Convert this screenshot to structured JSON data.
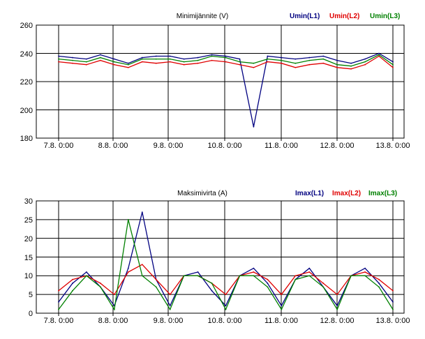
{
  "charts": [
    {
      "title": "Minimijännite (V)",
      "legend": [
        {
          "label": "Umin(L1)",
          "color": "#000080"
        },
        {
          "label": "Umin(L2)",
          "color": "#e00000"
        },
        {
          "label": "Umin(L3)",
          "color": "#008000"
        }
      ],
      "y_ticks": [
        "180",
        "200",
        "220",
        "240",
        "260"
      ],
      "x_ticks": [
        "7.8. 0:00",
        "8.8. 0:00",
        "9.8. 0:00",
        "10.8. 0:00",
        "11.8. 0:00",
        "12.8. 0:00",
        "13.8. 0:00"
      ]
    },
    {
      "title": "Maksimivirta (A)",
      "legend": [
        {
          "label": "Imax(L1)",
          "color": "#000080"
        },
        {
          "label": "Imax(L2)",
          "color": "#e00000"
        },
        {
          "label": "Imax(L3)",
          "color": "#008000"
        }
      ],
      "y_ticks": [
        "0",
        "5",
        "10",
        "15",
        "20",
        "25",
        "30"
      ],
      "x_ticks": [
        "7.8. 0:00",
        "8.8. 0:00",
        "9.8. 0:00",
        "10.8. 0:00",
        "11.8. 0:00",
        "12.8. 0:00",
        "13.8. 0:00"
      ]
    }
  ],
  "chart_data": [
    {
      "type": "line",
      "title": "Minimijännite (V)",
      "xlabel": "",
      "ylabel": "",
      "ylim": [
        180,
        260
      ],
      "x_range_days": [
        "6.8. 18:00",
        "13.8. 6:00"
      ],
      "grid": true,
      "legend_position": "top-right",
      "series": [
        {
          "name": "Umin(L1)",
          "color": "#000080",
          "x": [
            "7.8. 0:00",
            "7.8. 6:00",
            "7.8. 12:00",
            "7.8. 18:00",
            "8.8. 0:00",
            "8.8. 6:00",
            "8.8. 12:00",
            "8.8. 18:00",
            "9.8. 0:00",
            "9.8. 6:00",
            "9.8. 12:00",
            "9.8. 18:00",
            "10.8. 0:00",
            "10.8. 6:00",
            "10.8. 12:00",
            "10.8. 18:00",
            "11.8. 0:00",
            "11.8. 6:00",
            "11.8. 12:00",
            "11.8. 18:00",
            "12.8. 0:00",
            "12.8. 6:00",
            "12.8. 12:00",
            "12.8. 18:00",
            "13.8. 0:00"
          ],
          "y": [
            238,
            237,
            236,
            239,
            236,
            233,
            237,
            238,
            238,
            236,
            237,
            239,
            238,
            236,
            188,
            238,
            237,
            236,
            237,
            238,
            235,
            233,
            236,
            240,
            234
          ]
        },
        {
          "name": "Umin(L2)",
          "color": "#e00000",
          "x": [
            "7.8. 0:00",
            "7.8. 6:00",
            "7.8. 12:00",
            "7.8. 18:00",
            "8.8. 0:00",
            "8.8. 6:00",
            "8.8. 12:00",
            "8.8. 18:00",
            "9.8. 0:00",
            "9.8. 6:00",
            "9.8. 12:00",
            "9.8. 18:00",
            "10.8. 0:00",
            "10.8. 6:00",
            "10.8. 12:00",
            "10.8. 18:00",
            "11.8. 0:00",
            "11.8. 6:00",
            "11.8. 12:00",
            "11.8. 18:00",
            "12.8. 0:00",
            "12.8. 6:00",
            "12.8. 12:00",
            "12.8. 18:00",
            "13.8. 0:00"
          ],
          "y": [
            234,
            233,
            232,
            235,
            232,
            230,
            234,
            233,
            234,
            232,
            233,
            235,
            234,
            232,
            230,
            234,
            233,
            230,
            232,
            233,
            230,
            229,
            232,
            238,
            230
          ]
        },
        {
          "name": "Umin(L3)",
          "color": "#008000",
          "x": [
            "7.8. 0:00",
            "7.8. 6:00",
            "7.8. 12:00",
            "7.8. 18:00",
            "8.8. 0:00",
            "8.8. 6:00",
            "8.8. 12:00",
            "8.8. 18:00",
            "9.8. 0:00",
            "9.8. 6:00",
            "9.8. 12:00",
            "9.8. 18:00",
            "10.8. 0:00",
            "10.8. 6:00",
            "10.8. 12:00",
            "10.8. 18:00",
            "11.8. 0:00",
            "11.8. 6:00",
            "11.8. 12:00",
            "11.8. 18:00",
            "12.8. 0:00",
            "12.8. 6:00",
            "12.8. 12:00",
            "12.8. 18:00",
            "13.8. 0:00"
          ],
          "y": [
            236,
            235,
            234,
            237,
            234,
            232,
            236,
            236,
            236,
            234,
            235,
            238,
            237,
            234,
            233,
            236,
            235,
            233,
            235,
            236,
            232,
            231,
            234,
            239,
            232
          ]
        }
      ]
    },
    {
      "type": "line",
      "title": "Maksimivirta (A)",
      "xlabel": "",
      "ylabel": "",
      "ylim": [
        0,
        30
      ],
      "x_range_days": [
        "6.8. 18:00",
        "13.8. 6:00"
      ],
      "grid": true,
      "legend_position": "top-right",
      "series": [
        {
          "name": "Imax(L1)",
          "color": "#000080",
          "x": [
            "7.8. 0:00",
            "7.8. 6:00",
            "7.8. 12:00",
            "7.8. 18:00",
            "8.8. 0:00",
            "8.8. 6:00",
            "8.8. 12:00",
            "8.8. 18:00",
            "9.8. 0:00",
            "9.8. 6:00",
            "9.8. 12:00",
            "9.8. 18:00",
            "10.8. 0:00",
            "10.8. 6:00",
            "10.8. 12:00",
            "10.8. 18:00",
            "11.8. 0:00",
            "11.8. 6:00",
            "11.8. 12:00",
            "11.8. 18:00",
            "12.8. 0:00",
            "12.8. 6:00",
            "12.8. 12:00",
            "12.8. 18:00",
            "13.8. 0:00"
          ],
          "y": [
            3,
            8,
            11,
            7,
            2,
            12,
            27,
            9,
            2,
            10,
            11,
            6,
            2,
            10,
            12,
            8,
            2,
            9,
            12,
            7,
            2,
            10,
            12,
            8,
            3
          ]
        },
        {
          "name": "Imax(L2)",
          "color": "#e00000",
          "x": [
            "7.8. 0:00",
            "7.8. 6:00",
            "7.8. 12:00",
            "7.8. 18:00",
            "8.8. 0:00",
            "8.8. 6:00",
            "8.8. 12:00",
            "8.8. 18:00",
            "9.8. 0:00",
            "9.8. 6:00",
            "9.8. 12:00",
            "9.8. 18:00",
            "10.8. 0:00",
            "10.8. 6:00",
            "10.8. 12:00",
            "10.8. 18:00",
            "11.8. 0:00",
            "11.8. 6:00",
            "11.8. 12:00",
            "11.8. 18:00",
            "12.8. 0:00",
            "12.8. 6:00",
            "12.8. 12:00",
            "12.8. 18:00",
            "13.8. 0:00"
          ],
          "y": [
            6,
            9,
            10,
            8,
            5,
            11,
            13,
            9,
            5,
            10,
            10,
            8,
            5,
            10,
            11,
            9,
            5,
            10,
            11,
            8,
            5,
            10,
            11,
            9,
            6
          ]
        },
        {
          "name": "Imax(L3)",
          "color": "#008000",
          "x": [
            "7.8. 0:00",
            "7.8. 6:00",
            "7.8. 12:00",
            "7.8. 18:00",
            "8.8. 0:00",
            "8.8. 6:00",
            "8.8. 12:00",
            "8.8. 18:00",
            "9.8. 0:00",
            "9.8. 6:00",
            "9.8. 12:00",
            "9.8. 18:00",
            "10.8. 0:00",
            "10.8. 6:00",
            "10.8. 12:00",
            "10.8. 18:00",
            "11.8. 0:00",
            "11.8. 6:00",
            "11.8. 12:00",
            "11.8. 18:00",
            "12.8. 0:00",
            "12.8. 6:00",
            "12.8. 12:00",
            "12.8. 18:00",
            "13.8. 0:00"
          ],
          "y": [
            1,
            6,
            10,
            7,
            1,
            25,
            10,
            7,
            1,
            10,
            10,
            8,
            1,
            10,
            10,
            7,
            1,
            9,
            10,
            7,
            1,
            10,
            10,
            7,
            1
          ]
        }
      ]
    }
  ]
}
